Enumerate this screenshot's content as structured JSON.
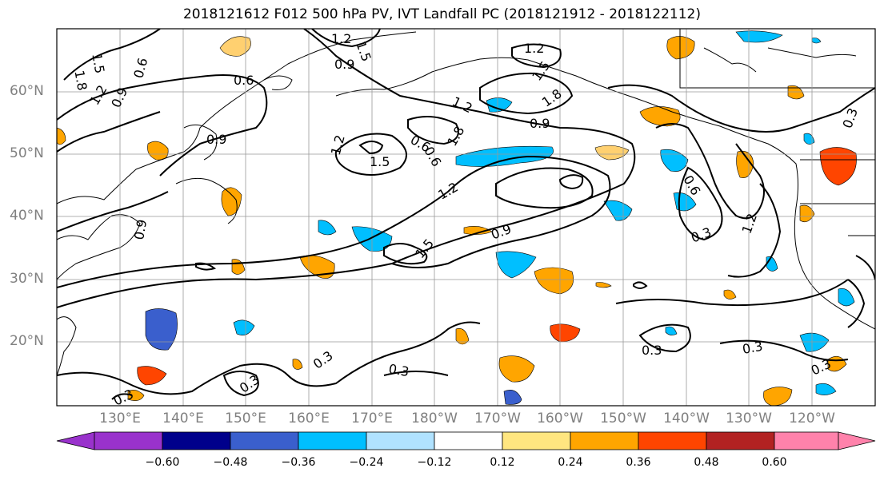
{
  "title": "2018121612 F012 500 hPa PV, IVT Landfall PC (2018121912 - 2018122112)",
  "latitudes": [
    "60°N",
    "50°N",
    "40°N",
    "30°N",
    "20°N"
  ],
  "longitudes": [
    "130°E",
    "140°E",
    "150°E",
    "160°E",
    "170°E",
    "180°W",
    "170°W",
    "160°W",
    "150°W",
    "140°W",
    "130°W",
    "120°W"
  ],
  "contour_labels": [
    "1.5",
    "1.8",
    "0.6",
    "1.2",
    "0.9",
    "0.6",
    "1.2",
    "1.5",
    "0.9",
    "1.8",
    "1.2",
    "1.5",
    "1.2",
    "0.9",
    "0.6",
    "1.2",
    "1.5",
    "1.8",
    "0.9",
    "0.6",
    "0.3",
    "0.9",
    "1.2",
    "0.6",
    "0.3",
    "0.3",
    "0.3",
    "0.3",
    "0.3",
    "0.3",
    "0.3",
    "0.3",
    "0.9",
    "1.2",
    "1.5"
  ],
  "colorbar": {
    "ticks": [
      "−0.60",
      "−0.48",
      "−0.36",
      "−0.24",
      "−0.12",
      "0.12",
      "0.24",
      "0.36",
      "0.48",
      "0.60"
    ],
    "colors": [
      "#9932cc",
      "#00008b",
      "#3a5fcd",
      "#00bfff",
      "#b0e2ff",
      "#ffffff",
      "#ffe680",
      "#ffa500",
      "#ff4500",
      "#b22222",
      "#ff82ab"
    ]
  }
}
